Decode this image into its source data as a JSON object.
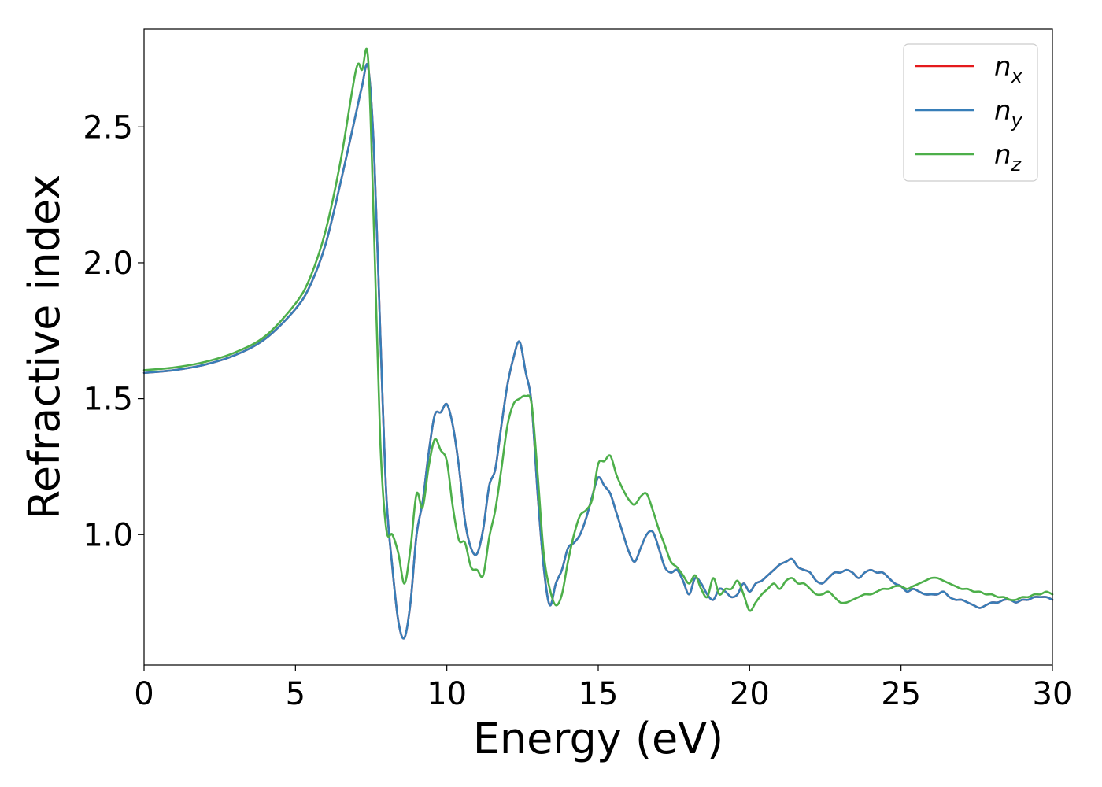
{
  "chart_data": {
    "type": "line",
    "title": "",
    "xlabel": "Energy (eV)",
    "ylabel": "Refractive index",
    "xlim": [
      0,
      30
    ],
    "ylim": [
      0.52,
      2.86
    ],
    "xticks": [
      0,
      5,
      10,
      15,
      20,
      25,
      30
    ],
    "yticks": [
      1.0,
      1.5,
      2.0,
      2.5
    ],
    "xtick_labels": [
      "0",
      "5",
      "10",
      "15",
      "20",
      "25",
      "30"
    ],
    "ytick_labels": [
      "1.0",
      "1.5",
      "2.0",
      "2.5"
    ],
    "grid": false,
    "legend_position": "top-right",
    "series": [
      {
        "name": "n",
        "subscript": "x",
        "color": "#e41a1c",
        "x": [
          0,
          1,
          2,
          3,
          4,
          5,
          5.5,
          6,
          6.5,
          7,
          7.2,
          7.4,
          7.6,
          7.8,
          8,
          8.2,
          8.4,
          8.6,
          8.8,
          9,
          9.2,
          9.4,
          9.6,
          9.8,
          10,
          10.2,
          10.4,
          10.6,
          10.8,
          11,
          11.2,
          11.4,
          11.6,
          11.8,
          12,
          12.2,
          12.4,
          12.6,
          12.8,
          13,
          13.2,
          13.4,
          13.6,
          13.8,
          14,
          14.2,
          14.4,
          14.6,
          14.8,
          15,
          15.2,
          15.4,
          15.6,
          15.8,
          16,
          16.2,
          16.4,
          16.6,
          16.8,
          17,
          17.2,
          17.4,
          17.6,
          17.8,
          18,
          18.2,
          18.4,
          18.6,
          18.8,
          19,
          19.2,
          19.4,
          19.6,
          19.8,
          20,
          20.2,
          20.4,
          20.6,
          20.8,
          21,
          21.2,
          21.4,
          21.6,
          21.8,
          22,
          22.2,
          22.4,
          22.6,
          22.8,
          23,
          23.2,
          23.4,
          23.6,
          23.8,
          24,
          24.2,
          24.4,
          24.6,
          24.8,
          25,
          25.2,
          25.4,
          25.6,
          25.8,
          26,
          26.2,
          26.4,
          26.6,
          26.8,
          27,
          27.2,
          27.4,
          27.6,
          27.8,
          28,
          28.2,
          28.4,
          28.6,
          28.8,
          29,
          29.2,
          29.4,
          29.6,
          29.8,
          30
        ],
        "values": [
          1.595,
          1.605,
          1.625,
          1.66,
          1.72,
          1.83,
          1.92,
          2.07,
          2.3,
          2.55,
          2.65,
          2.72,
          2.4,
          1.75,
          1.15,
          0.88,
          0.68,
          0.62,
          0.75,
          1.0,
          1.12,
          1.3,
          1.44,
          1.45,
          1.48,
          1.4,
          1.25,
          1.05,
          0.95,
          0.93,
          1.02,
          1.18,
          1.24,
          1.4,
          1.55,
          1.65,
          1.71,
          1.6,
          1.48,
          1.15,
          0.88,
          0.74,
          0.82,
          0.87,
          0.95,
          0.97,
          1.0,
          1.06,
          1.14,
          1.21,
          1.18,
          1.15,
          1.08,
          1.01,
          0.94,
          0.9,
          0.95,
          1.0,
          1.01,
          0.95,
          0.88,
          0.86,
          0.87,
          0.83,
          0.78,
          0.84,
          0.82,
          0.78,
          0.76,
          0.8,
          0.79,
          0.77,
          0.78,
          0.82,
          0.79,
          0.82,
          0.83,
          0.85,
          0.87,
          0.89,
          0.9,
          0.91,
          0.88,
          0.87,
          0.86,
          0.83,
          0.82,
          0.84,
          0.86,
          0.86,
          0.87,
          0.86,
          0.84,
          0.86,
          0.87,
          0.86,
          0.86,
          0.84,
          0.82,
          0.81,
          0.79,
          0.8,
          0.79,
          0.78,
          0.78,
          0.78,
          0.79,
          0.77,
          0.76,
          0.76,
          0.75,
          0.74,
          0.73,
          0.74,
          0.75,
          0.75,
          0.76,
          0.76,
          0.75,
          0.76,
          0.76,
          0.77,
          0.77,
          0.77,
          0.76
        ]
      },
      {
        "name": "n",
        "subscript": "y",
        "color": "#377eb8",
        "x": [
          0,
          1,
          2,
          3,
          4,
          5,
          5.5,
          6,
          6.5,
          7,
          7.2,
          7.4,
          7.6,
          7.8,
          8,
          8.2,
          8.4,
          8.6,
          8.8,
          9,
          9.2,
          9.4,
          9.6,
          9.8,
          10,
          10.2,
          10.4,
          10.6,
          10.8,
          11,
          11.2,
          11.4,
          11.6,
          11.8,
          12,
          12.2,
          12.4,
          12.6,
          12.8,
          13,
          13.2,
          13.4,
          13.6,
          13.8,
          14,
          14.2,
          14.4,
          14.6,
          14.8,
          15,
          15.2,
          15.4,
          15.6,
          15.8,
          16,
          16.2,
          16.4,
          16.6,
          16.8,
          17,
          17.2,
          17.4,
          17.6,
          17.8,
          18,
          18.2,
          18.4,
          18.6,
          18.8,
          19,
          19.2,
          19.4,
          19.6,
          19.8,
          20,
          20.2,
          20.4,
          20.6,
          20.8,
          21,
          21.2,
          21.4,
          21.6,
          21.8,
          22,
          22.2,
          22.4,
          22.6,
          22.8,
          23,
          23.2,
          23.4,
          23.6,
          23.8,
          24,
          24.2,
          24.4,
          24.6,
          24.8,
          25,
          25.2,
          25.4,
          25.6,
          25.8,
          26,
          26.2,
          26.4,
          26.6,
          26.8,
          27,
          27.2,
          27.4,
          27.6,
          27.8,
          28,
          28.2,
          28.4,
          28.6,
          28.8,
          29,
          29.2,
          29.4,
          29.6,
          29.8,
          30
        ],
        "values": [
          1.595,
          1.605,
          1.625,
          1.66,
          1.72,
          1.83,
          1.92,
          2.07,
          2.3,
          2.55,
          2.65,
          2.72,
          2.4,
          1.75,
          1.15,
          0.88,
          0.68,
          0.62,
          0.75,
          1.0,
          1.12,
          1.3,
          1.44,
          1.45,
          1.48,
          1.4,
          1.25,
          1.05,
          0.95,
          0.93,
          1.02,
          1.18,
          1.24,
          1.4,
          1.55,
          1.65,
          1.71,
          1.6,
          1.48,
          1.15,
          0.88,
          0.74,
          0.82,
          0.87,
          0.95,
          0.97,
          1.0,
          1.06,
          1.14,
          1.21,
          1.18,
          1.15,
          1.08,
          1.01,
          0.94,
          0.9,
          0.95,
          1.0,
          1.01,
          0.95,
          0.88,
          0.86,
          0.87,
          0.83,
          0.78,
          0.84,
          0.82,
          0.78,
          0.76,
          0.8,
          0.79,
          0.77,
          0.78,
          0.82,
          0.79,
          0.82,
          0.83,
          0.85,
          0.87,
          0.89,
          0.9,
          0.91,
          0.88,
          0.87,
          0.86,
          0.83,
          0.82,
          0.84,
          0.86,
          0.86,
          0.87,
          0.86,
          0.84,
          0.86,
          0.87,
          0.86,
          0.86,
          0.84,
          0.82,
          0.81,
          0.79,
          0.8,
          0.79,
          0.78,
          0.78,
          0.78,
          0.79,
          0.77,
          0.76,
          0.76,
          0.75,
          0.74,
          0.73,
          0.74,
          0.75,
          0.75,
          0.76,
          0.76,
          0.75,
          0.76,
          0.76,
          0.77,
          0.77,
          0.77,
          0.76
        ]
      },
      {
        "name": "n",
        "subscript": "z",
        "color": "#4daf4a",
        "x": [
          0,
          1,
          2,
          3,
          4,
          5,
          5.5,
          6,
          6.5,
          7,
          7.2,
          7.4,
          7.6,
          7.8,
          8,
          8.2,
          8.4,
          8.6,
          8.8,
          9,
          9.2,
          9.4,
          9.6,
          9.8,
          10,
          10.2,
          10.4,
          10.6,
          10.8,
          11,
          11.2,
          11.4,
          11.6,
          11.8,
          12,
          12.2,
          12.4,
          12.6,
          12.8,
          13,
          13.2,
          13.4,
          13.6,
          13.8,
          14,
          14.2,
          14.4,
          14.6,
          14.8,
          15,
          15.2,
          15.4,
          15.6,
          15.8,
          16,
          16.2,
          16.4,
          16.6,
          16.8,
          17,
          17.2,
          17.4,
          17.6,
          17.8,
          18,
          18.2,
          18.4,
          18.6,
          18.8,
          19,
          19.2,
          19.4,
          19.6,
          19.8,
          20,
          20.2,
          20.4,
          20.6,
          20.8,
          21,
          21.2,
          21.4,
          21.6,
          21.8,
          22,
          22.2,
          22.4,
          22.6,
          22.8,
          23,
          23.2,
          23.4,
          23.6,
          23.8,
          24,
          24.2,
          24.4,
          24.6,
          24.8,
          25,
          25.2,
          25.4,
          25.6,
          25.8,
          26,
          26.2,
          26.4,
          26.6,
          26.8,
          27,
          27.2,
          27.4,
          27.6,
          27.8,
          28,
          28.2,
          28.4,
          28.6,
          28.8,
          29,
          29.2,
          29.4,
          29.6,
          29.8,
          30
        ],
        "values": [
          1.605,
          1.615,
          1.635,
          1.67,
          1.73,
          1.85,
          1.95,
          2.12,
          2.38,
          2.71,
          2.71,
          2.75,
          2.1,
          1.35,
          1.02,
          1.0,
          0.93,
          0.82,
          0.95,
          1.15,
          1.1,
          1.25,
          1.35,
          1.31,
          1.27,
          1.1,
          0.98,
          0.97,
          0.88,
          0.87,
          0.85,
          0.99,
          1.09,
          1.24,
          1.4,
          1.48,
          1.5,
          1.51,
          1.48,
          1.22,
          0.93,
          0.8,
          0.74,
          0.78,
          0.9,
          1.0,
          1.07,
          1.09,
          1.13,
          1.26,
          1.27,
          1.29,
          1.22,
          1.17,
          1.13,
          1.11,
          1.14,
          1.15,
          1.09,
          1.02,
          0.96,
          0.9,
          0.88,
          0.85,
          0.82,
          0.85,
          0.8,
          0.77,
          0.84,
          0.78,
          0.8,
          0.8,
          0.83,
          0.78,
          0.72,
          0.75,
          0.78,
          0.8,
          0.82,
          0.8,
          0.83,
          0.84,
          0.82,
          0.82,
          0.8,
          0.78,
          0.78,
          0.79,
          0.77,
          0.75,
          0.75,
          0.76,
          0.77,
          0.78,
          0.78,
          0.79,
          0.8,
          0.8,
          0.81,
          0.81,
          0.8,
          0.81,
          0.82,
          0.83,
          0.84,
          0.84,
          0.83,
          0.82,
          0.81,
          0.8,
          0.8,
          0.79,
          0.79,
          0.78,
          0.78,
          0.77,
          0.77,
          0.76,
          0.76,
          0.77,
          0.77,
          0.78,
          0.78,
          0.79,
          0.78
        ]
      }
    ]
  }
}
